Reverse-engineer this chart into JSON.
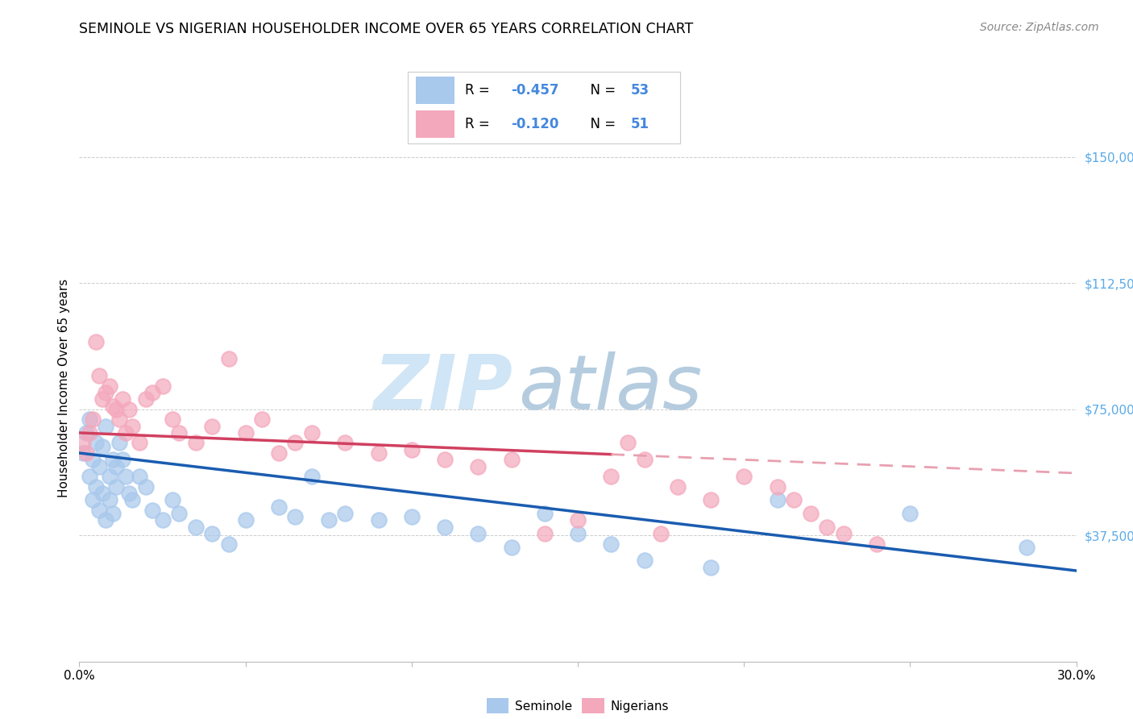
{
  "title": "SEMINOLE VS NIGERIAN HOUSEHOLDER INCOME OVER 65 YEARS CORRELATION CHART",
  "source": "Source: ZipAtlas.com",
  "ylabel": "Householder Income Over 65 years",
  "xlim": [
    0.0,
    0.3
  ],
  "ylim": [
    0,
    162500
  ],
  "yticks": [
    0,
    37500,
    75000,
    112500,
    150000
  ],
  "xticks": [
    0.0,
    0.05,
    0.1,
    0.15,
    0.2,
    0.25,
    0.3
  ],
  "seminole_color": "#A8C8EC",
  "nigerian_color": "#F4A8BC",
  "seminole_line_color": "#1A5CB0",
  "nigerian_line_color": "#D04060",
  "nigerian_line_dashed_color": "#E8A0B0",
  "watermark_zip_color": "#C8DFF0",
  "watermark_atlas_color": "#B0C8E8",
  "legend_box_color": "#DDDDDD",
  "legend_R_color": "#4488DD",
  "seminole_x": [
    0.001,
    0.002,
    0.003,
    0.003,
    0.004,
    0.004,
    0.005,
    0.005,
    0.006,
    0.006,
    0.007,
    0.007,
    0.008,
    0.008,
    0.009,
    0.009,
    0.01,
    0.01,
    0.011,
    0.011,
    0.012,
    0.013,
    0.014,
    0.015,
    0.016,
    0.018,
    0.02,
    0.022,
    0.025,
    0.028,
    0.03,
    0.035,
    0.04,
    0.045,
    0.05,
    0.06,
    0.065,
    0.07,
    0.075,
    0.08,
    0.09,
    0.1,
    0.11,
    0.12,
    0.13,
    0.14,
    0.15,
    0.16,
    0.17,
    0.19,
    0.21,
    0.25,
    0.285
  ],
  "seminole_y": [
    62000,
    68000,
    55000,
    72000,
    60000,
    48000,
    65000,
    52000,
    58000,
    45000,
    64000,
    50000,
    70000,
    42000,
    55000,
    48000,
    60000,
    44000,
    58000,
    52000,
    65000,
    60000,
    55000,
    50000,
    48000,
    55000,
    52000,
    45000,
    42000,
    48000,
    44000,
    40000,
    38000,
    35000,
    42000,
    46000,
    43000,
    55000,
    42000,
    44000,
    42000,
    43000,
    40000,
    38000,
    34000,
    44000,
    38000,
    35000,
    30000,
    28000,
    48000,
    44000,
    34000
  ],
  "nigerian_x": [
    0.001,
    0.002,
    0.003,
    0.004,
    0.005,
    0.006,
    0.007,
    0.008,
    0.009,
    0.01,
    0.011,
    0.012,
    0.013,
    0.014,
    0.015,
    0.016,
    0.018,
    0.02,
    0.022,
    0.025,
    0.028,
    0.03,
    0.035,
    0.04,
    0.045,
    0.05,
    0.055,
    0.06,
    0.065,
    0.07,
    0.08,
    0.09,
    0.1,
    0.11,
    0.12,
    0.13,
    0.14,
    0.15,
    0.16,
    0.165,
    0.17,
    0.175,
    0.18,
    0.19,
    0.2,
    0.21,
    0.215,
    0.22,
    0.225,
    0.23,
    0.24
  ],
  "nigerian_y": [
    65000,
    62000,
    68000,
    72000,
    95000,
    85000,
    78000,
    80000,
    82000,
    76000,
    75000,
    72000,
    78000,
    68000,
    75000,
    70000,
    65000,
    78000,
    80000,
    82000,
    72000,
    68000,
    65000,
    70000,
    90000,
    68000,
    72000,
    62000,
    65000,
    68000,
    65000,
    62000,
    63000,
    60000,
    58000,
    60000,
    38000,
    42000,
    55000,
    65000,
    60000,
    38000,
    52000,
    48000,
    55000,
    52000,
    48000,
    44000,
    40000,
    38000,
    35000
  ]
}
